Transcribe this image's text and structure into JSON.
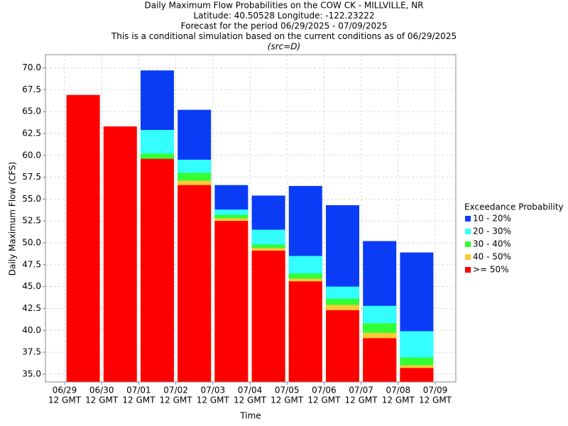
{
  "chart_data": {
    "type": "bar",
    "title_lines": [
      "Daily Maximum Flow Probabilities on the COW CK - MILLVILLE, NR",
      "Latitude: 40.50528 Longitude: -122.23222",
      "Forecast for the period 06/29/2025 - 07/09/2025",
      "This is a conditional simulation based on the current conditions as of 06/29/2025",
      "(src=D)"
    ],
    "y_label": "Daily Maximum Flow (CFS)",
    "x_label": "Time",
    "legend_title": "Exceedance Probability",
    "x_tick_labels": [
      [
        "06/29",
        "12 GMT"
      ],
      [
        "06/30",
        "12 GMT"
      ],
      [
        "07/01",
        "12 GMT"
      ],
      [
        "07/02",
        "12 GMT"
      ],
      [
        "07/03",
        "12 GMT"
      ],
      [
        "07/04",
        "12 GMT"
      ],
      [
        "07/05",
        "12 GMT"
      ],
      [
        "07/06",
        "12 GMT"
      ],
      [
        "07/07",
        "12 GMT"
      ],
      [
        "07/08",
        "12 GMT"
      ],
      [
        "07/09",
        "12 GMT"
      ]
    ],
    "series": [
      {
        "name": "10 - 20%",
        "color": "#0a3cf5",
        "values": [
          null,
          null,
          69.7,
          65.2,
          56.6,
          55.4,
          56.5,
          54.3,
          50.2,
          48.9
        ]
      },
      {
        "name": "20 - 30%",
        "color": "#33ffff",
        "values": [
          null,
          null,
          62.9,
          59.5,
          53.8,
          51.5,
          48.5,
          45.0,
          42.8,
          39.9
        ]
      },
      {
        "name": "30 - 40%",
        "color": "#33ff33",
        "values": [
          null,
          null,
          60.2,
          58.0,
          53.2,
          49.8,
          46.5,
          43.6,
          40.8,
          36.9
        ]
      },
      {
        "name": "40 - 50%",
        "color": "#ffc838",
        "values": [
          null,
          null,
          null,
          57.1,
          52.8,
          49.4,
          45.9,
          42.9,
          39.7,
          36.0
        ]
      },
      {
        "name": ">= 50%",
        "color": "#ff0000",
        "values": [
          66.9,
          63.3,
          59.6,
          56.6,
          52.5,
          49.1,
          45.6,
          42.3,
          39.1,
          35.7
        ]
      }
    ],
    "ylim": [
      34.1,
      71.5
    ],
    "yticks": [
      {
        "value": 35,
        "label": "35.0"
      },
      {
        "value": 37.5,
        "label": "37.5"
      },
      {
        "value": 40,
        "label": "40.0"
      },
      {
        "value": 42.5,
        "label": "42.5"
      },
      {
        "value": 45,
        "label": "45.0"
      },
      {
        "value": 47.5,
        "label": "47.5"
      },
      {
        "value": 50,
        "label": "50.0"
      },
      {
        "value": 52.5,
        "label": "52.5"
      },
      {
        "value": 55,
        "label": "55.0"
      },
      {
        "value": 57.5,
        "label": "57.5"
      },
      {
        "value": 60,
        "label": "60.0"
      },
      {
        "value": 62.5,
        "label": "62.5"
      },
      {
        "value": 65,
        "label": "65.0"
      },
      {
        "value": 67.5,
        "label": "67.5"
      },
      {
        "value": 70,
        "label": "70.0"
      }
    ],
    "grid": true,
    "legend": "right"
  }
}
